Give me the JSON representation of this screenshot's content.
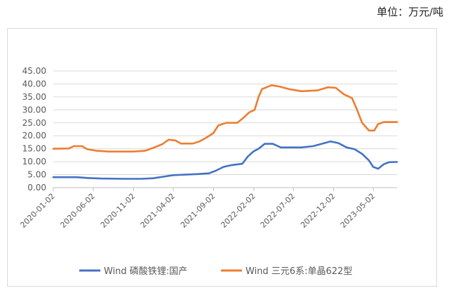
{
  "unit_label": "单位：万元/吨",
  "chart_data": {
    "type": "line",
    "title": "",
    "xlabel": "",
    "ylabel": "",
    "ylim": [
      0,
      45
    ],
    "yticks": [
      "0.00",
      "5.00",
      "10.00",
      "15.00",
      "20.00",
      "25.00",
      "30.00",
      "35.00",
      "40.00",
      "45.00"
    ],
    "xlim": [
      "2020-01-02",
      "2023-07-31"
    ],
    "xticks": [
      "2020-01-02",
      "2020-06-02",
      "2020-11-02",
      "2021-04-02",
      "2021-09-02",
      "2022-02-02",
      "2022-07-02",
      "2022-12-02",
      "2023-05-02"
    ],
    "grid": "horizontal",
    "legend_position": "bottom",
    "series": [
      {
        "name": "Wind 磷酸铁锂:国产",
        "color": "#4472c4",
        "points": [
          [
            "2020-01-02",
            4.0
          ],
          [
            "2020-04-01",
            4.0
          ],
          [
            "2020-05-15",
            3.7
          ],
          [
            "2020-07-01",
            3.5
          ],
          [
            "2020-10-01",
            3.4
          ],
          [
            "2020-12-01",
            3.4
          ],
          [
            "2021-01-15",
            3.6
          ],
          [
            "2021-03-01",
            4.3
          ],
          [
            "2021-04-01",
            4.8
          ],
          [
            "2021-05-15",
            5.0
          ],
          [
            "2021-07-01",
            5.2
          ],
          [
            "2021-08-15",
            5.5
          ],
          [
            "2021-09-10",
            6.5
          ],
          [
            "2021-10-10",
            8.0
          ],
          [
            "2021-11-10",
            8.7
          ],
          [
            "2021-12-20",
            9.2
          ],
          [
            "2022-01-10",
            12.0
          ],
          [
            "2022-02-01",
            14.0
          ],
          [
            "2022-02-20",
            15.0
          ],
          [
            "2022-03-15",
            16.9
          ],
          [
            "2022-04-15",
            16.9
          ],
          [
            "2022-05-15",
            15.5
          ],
          [
            "2022-06-15",
            15.5
          ],
          [
            "2022-08-01",
            15.5
          ],
          [
            "2022-09-15",
            16.0
          ],
          [
            "2022-11-01",
            17.3
          ],
          [
            "2022-11-20",
            17.8
          ],
          [
            "2022-12-20",
            17.2
          ],
          [
            "2023-01-20",
            15.5
          ],
          [
            "2023-02-20",
            14.8
          ],
          [
            "2023-03-20",
            13.0
          ],
          [
            "2023-04-15",
            10.5
          ],
          [
            "2023-05-01",
            8.0
          ],
          [
            "2023-05-20",
            7.3
          ],
          [
            "2023-06-10",
            9.0
          ],
          [
            "2023-07-01",
            9.8
          ],
          [
            "2023-07-31",
            9.9
          ]
        ]
      },
      {
        "name": "Wind 三元6系:单晶622型",
        "color": "#ed7d31",
        "points": [
          [
            "2020-01-02",
            15.0
          ],
          [
            "2020-03-01",
            15.1
          ],
          [
            "2020-03-20",
            16.0
          ],
          [
            "2020-04-20",
            16.0
          ],
          [
            "2020-05-10",
            14.8
          ],
          [
            "2020-06-15",
            14.2
          ],
          [
            "2020-08-01",
            13.9
          ],
          [
            "2020-11-01",
            13.9
          ],
          [
            "2020-12-15",
            14.2
          ],
          [
            "2021-01-20",
            15.5
          ],
          [
            "2021-02-20",
            16.8
          ],
          [
            "2021-03-15",
            18.5
          ],
          [
            "2021-04-10",
            18.2
          ],
          [
            "2021-05-01",
            17.0
          ],
          [
            "2021-06-15",
            17.0
          ],
          [
            "2021-07-10",
            17.8
          ],
          [
            "2021-08-01",
            19.0
          ],
          [
            "2021-09-01",
            21.0
          ],
          [
            "2021-09-20",
            24.0
          ],
          [
            "2021-10-20",
            25.0
          ],
          [
            "2021-12-01",
            25.0
          ],
          [
            "2021-12-25",
            27.0
          ],
          [
            "2022-01-15",
            29.0
          ],
          [
            "2022-02-05",
            30.0
          ],
          [
            "2022-02-20",
            35.0
          ],
          [
            "2022-03-05",
            38.0
          ],
          [
            "2022-04-10",
            39.5
          ],
          [
            "2022-05-10",
            39.0
          ],
          [
            "2022-06-15",
            38.0
          ],
          [
            "2022-08-01",
            37.2
          ],
          [
            "2022-10-01",
            37.5
          ],
          [
            "2022-11-10",
            38.7
          ],
          [
            "2022-12-10",
            38.5
          ],
          [
            "2023-01-10",
            36.0
          ],
          [
            "2023-02-10",
            34.5
          ],
          [
            "2023-03-01",
            30.0
          ],
          [
            "2023-03-20",
            25.0
          ],
          [
            "2023-04-15",
            22.0
          ],
          [
            "2023-05-05",
            22.0
          ],
          [
            "2023-05-20",
            24.5
          ],
          [
            "2023-06-10",
            25.3
          ],
          [
            "2023-07-31",
            25.3
          ]
        ]
      }
    ]
  }
}
